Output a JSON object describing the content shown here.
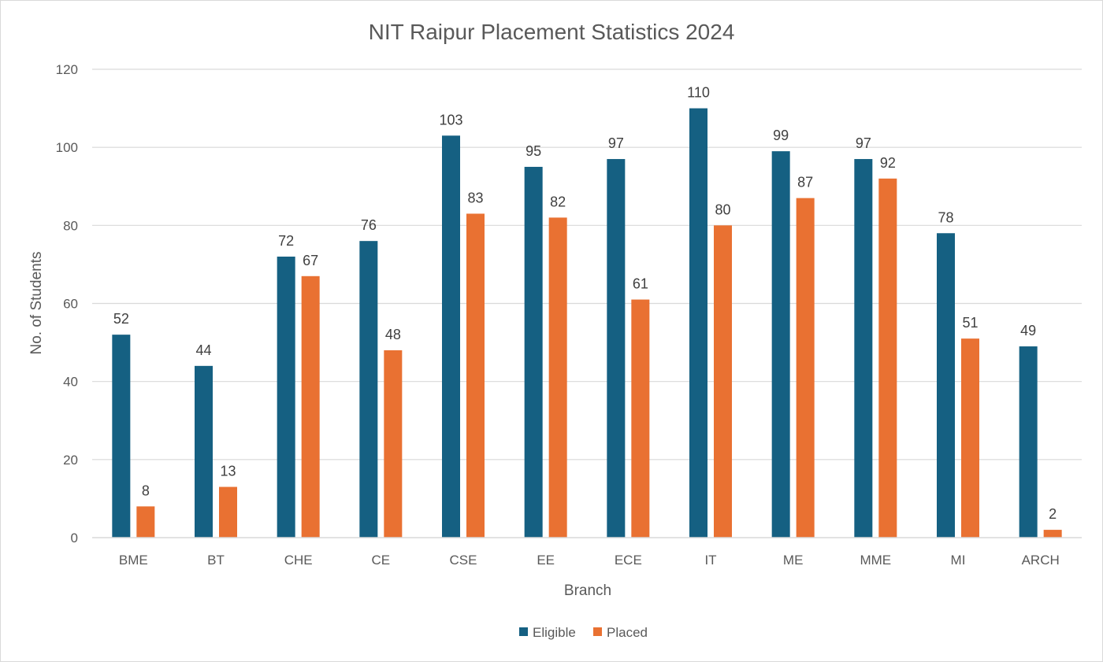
{
  "chart_data": {
    "type": "bar",
    "title": "NIT Raipur Placement Statistics 2024",
    "xlabel": "Branch",
    "ylabel": "No. of Students",
    "categories": [
      "BME",
      "BT",
      "CHE",
      "CE",
      "CSE",
      "EE",
      "ECE",
      "IT",
      "ME",
      "MME",
      "MI",
      "ARCH"
    ],
    "series": [
      {
        "name": "Eligible",
        "color": "#156082",
        "values": [
          52,
          44,
          72,
          76,
          103,
          95,
          97,
          110,
          99,
          97,
          78,
          49
        ]
      },
      {
        "name": "Placed",
        "color": "#E97132",
        "values": [
          8,
          13,
          67,
          48,
          83,
          82,
          61,
          80,
          87,
          92,
          51,
          2
        ]
      }
    ],
    "ylim": [
      0,
      120
    ],
    "yticks": [
      0,
      20,
      40,
      60,
      80,
      100,
      120
    ],
    "grid": true,
    "legend_position": "bottom",
    "data_labels": true
  }
}
